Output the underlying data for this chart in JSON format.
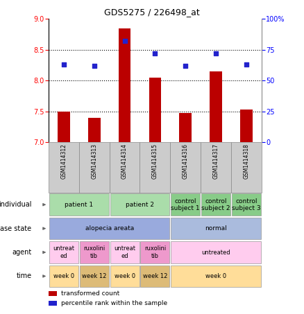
{
  "title": "GDS5275 / 226498_at",
  "samples": [
    "GSM1414312",
    "GSM1414313",
    "GSM1414314",
    "GSM1414315",
    "GSM1414316",
    "GSM1414317",
    "GSM1414318"
  ],
  "transformed_counts": [
    7.5,
    7.4,
    8.85,
    8.05,
    7.47,
    8.15,
    7.53
  ],
  "percentile_ranks": [
    63,
    62,
    82,
    72,
    62,
    72,
    63
  ],
  "ylim_left": [
    7,
    9
  ],
  "ylim_right": [
    0,
    100
  ],
  "yticks_left": [
    7,
    7.5,
    8,
    8.5,
    9
  ],
  "yticks_right": [
    0,
    25,
    50,
    75,
    100
  ],
  "ytick_labels_right": [
    "0",
    "25",
    "50",
    "75",
    "100%"
  ],
  "bar_color": "#BB0000",
  "dot_color": "#2222CC",
  "bar_bottom": 7,
  "grid_lines": [
    7.5,
    8.0,
    8.5
  ],
  "annotation_rows": [
    {
      "label": "individual",
      "cells": [
        {
          "text": "patient 1",
          "span": [
            0,
            1
          ],
          "color": "#AADDAA"
        },
        {
          "text": "patient 2",
          "span": [
            2,
            3
          ],
          "color": "#AADDAA"
        },
        {
          "text": "control\nsubject 1",
          "span": [
            4,
            4
          ],
          "color": "#88CC88"
        },
        {
          "text": "control\nsubject 2",
          "span": [
            5,
            5
          ],
          "color": "#88CC88"
        },
        {
          "text": "control\nsubject 3",
          "span": [
            6,
            6
          ],
          "color": "#88CC88"
        }
      ]
    },
    {
      "label": "disease state",
      "cells": [
        {
          "text": "alopecia areata",
          "span": [
            0,
            3
          ],
          "color": "#99AADD"
        },
        {
          "text": "normal",
          "span": [
            4,
            6
          ],
          "color": "#AABBDD"
        }
      ]
    },
    {
      "label": "agent",
      "cells": [
        {
          "text": "untreat\ned",
          "span": [
            0,
            0
          ],
          "color": "#FFCCEE"
        },
        {
          "text": "ruxolini\ntib",
          "span": [
            1,
            1
          ],
          "color": "#EE99CC"
        },
        {
          "text": "untreat\ned",
          "span": [
            2,
            2
          ],
          "color": "#FFCCEE"
        },
        {
          "text": "ruxolini\ntib",
          "span": [
            3,
            3
          ],
          "color": "#EE99CC"
        },
        {
          "text": "untreated",
          "span": [
            4,
            6
          ],
          "color": "#FFCCEE"
        }
      ]
    },
    {
      "label": "time",
      "cells": [
        {
          "text": "week 0",
          "span": [
            0,
            0
          ],
          "color": "#FFDD99"
        },
        {
          "text": "week 12",
          "span": [
            1,
            1
          ],
          "color": "#DDBB77"
        },
        {
          "text": "week 0",
          "span": [
            2,
            2
          ],
          "color": "#FFDD99"
        },
        {
          "text": "week 12",
          "span": [
            3,
            3
          ],
          "color": "#DDBB77"
        },
        {
          "text": "week 0",
          "span": [
            4,
            6
          ],
          "color": "#FFDD99"
        }
      ]
    }
  ],
  "legend_items": [
    {
      "color": "#BB0000",
      "label": "transformed count"
    },
    {
      "color": "#2222CC",
      "label": "percentile rank within the sample"
    }
  ],
  "sample_box_color": "#CCCCCC",
  "sample_box_edge": "#888888"
}
